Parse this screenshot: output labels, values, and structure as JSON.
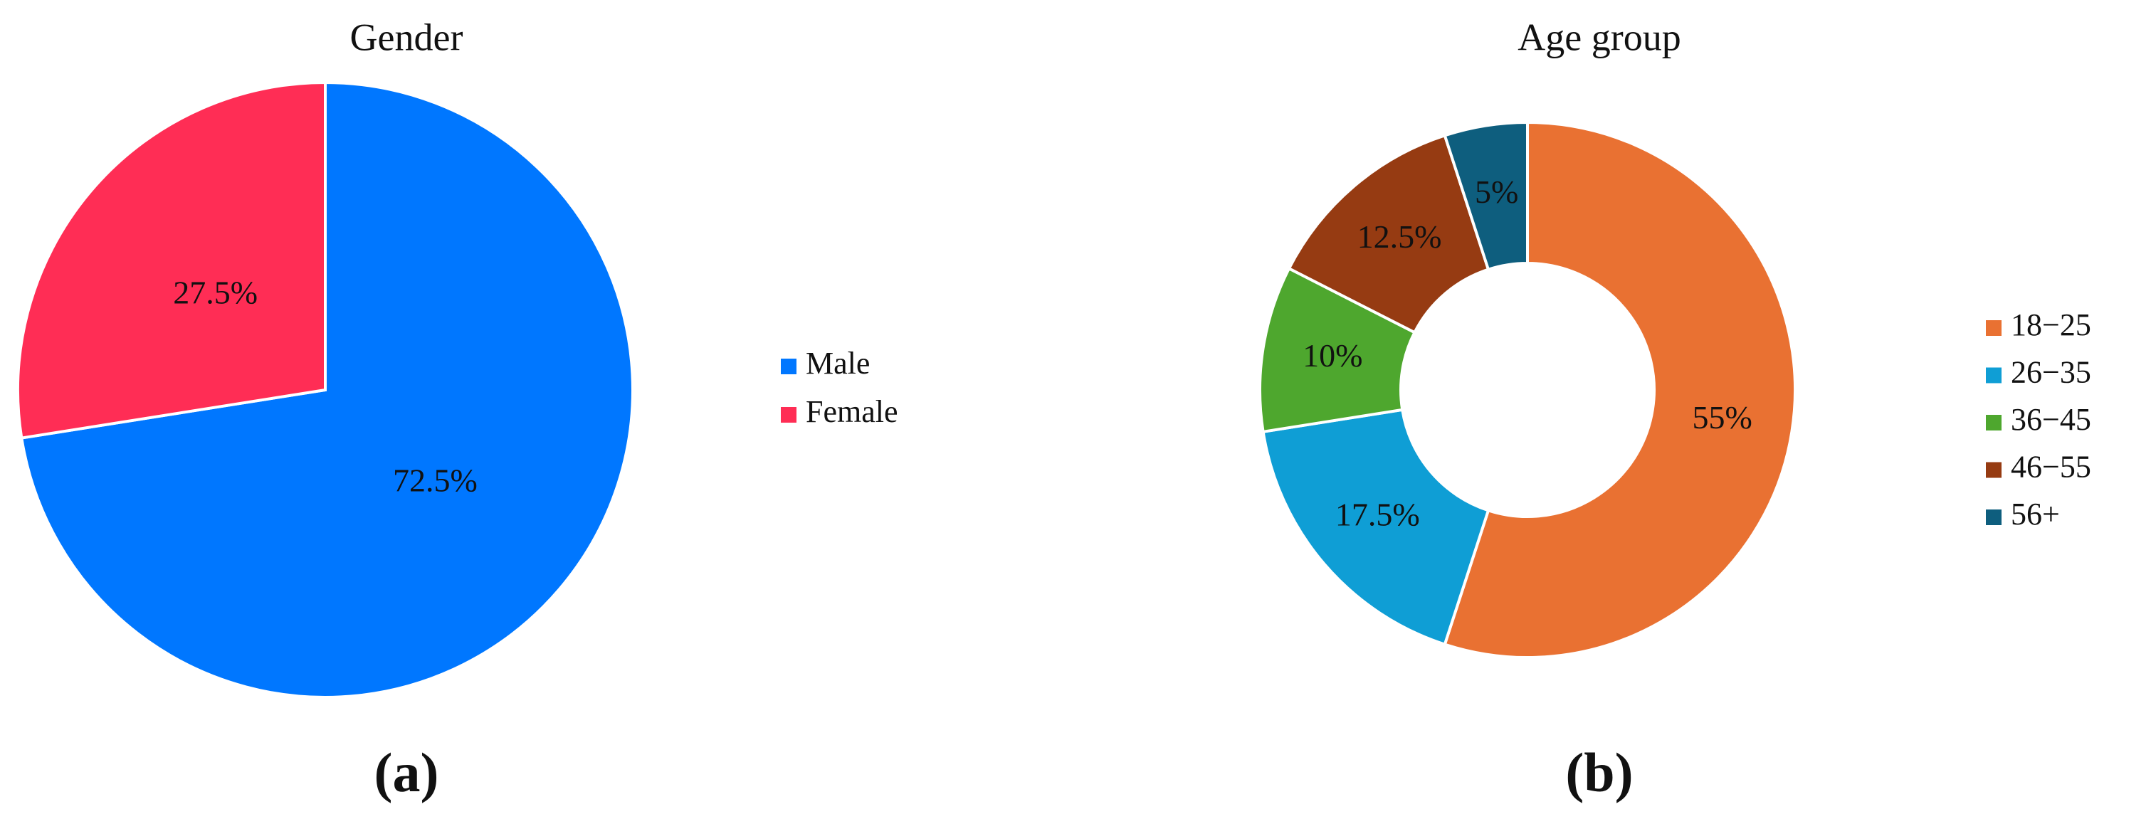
{
  "chart_data": [
    {
      "type": "pie",
      "title": "Gender",
      "panel_label": "(a)",
      "categories": [
        "Male",
        "Female"
      ],
      "values": [
        72.5,
        27.5
      ],
      "value_labels": [
        "72.5%",
        "27.5%"
      ],
      "colors": [
        "#0077ff",
        "#ff2d55"
      ]
    },
    {
      "type": "donut",
      "title": "Age group",
      "panel_label": "(b)",
      "categories": [
        "18−25",
        "26−35",
        "36−45",
        "46−55",
        "56+"
      ],
      "values": [
        55,
        17.5,
        10,
        12.5,
        5
      ],
      "value_labels": [
        "55%",
        "17.5%",
        "10%",
        "12.5%",
        "5%"
      ],
      "colors": [
        "#e97132",
        "#0f9ed5",
        "#4ea72e",
        "#963b12",
        "#0e5e7e"
      ]
    }
  ]
}
